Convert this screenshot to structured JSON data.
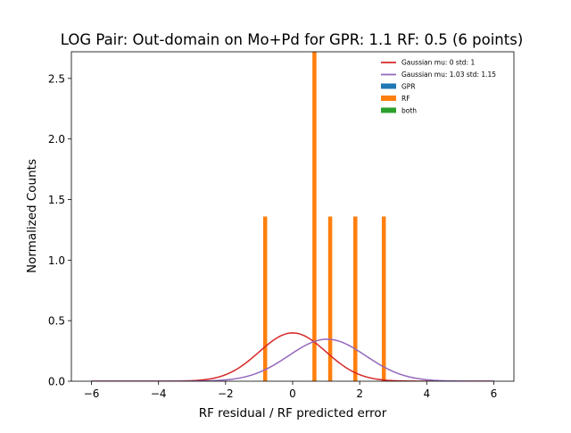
{
  "chart_data": {
    "type": "bar",
    "title": "LOG Pair: Out-domain on Mo+Pd for GPR: 1.1 RF: 0.5 (6 points)",
    "xlabel": "RF residual / RF predicted error",
    "ylabel": "Normalized Counts",
    "xlim": [
      -6.6,
      6.6
    ],
    "ylim": [
      0,
      2.72
    ],
    "xticks": [
      -6,
      -4,
      -2,
      0,
      2,
      4,
      6
    ],
    "xtick_labels": [
      "−6",
      "−4",
      "−2",
      "0",
      "2",
      "4",
      "6"
    ],
    "yticks": [
      0.0,
      0.5,
      1.0,
      1.5,
      2.0,
      2.5
    ],
    "ytick_labels": [
      "0.0",
      "0.5",
      "1.0",
      "1.5",
      "2.0",
      "2.5"
    ],
    "grid": false,
    "legend_position": "upper right",
    "series": [
      {
        "name": "RF",
        "kind": "histogram",
        "color": "#ff7f0e",
        "bin_width": 0.12,
        "x": [
          -0.82,
          0.65,
          1.12,
          1.87,
          2.72
        ],
        "values": [
          1.36,
          2.72,
          1.36,
          1.36,
          1.36
        ]
      },
      {
        "name": "GPR",
        "kind": "histogram",
        "color": "#1f77b4",
        "x": [],
        "values": []
      },
      {
        "name": "both",
        "kind": "histogram",
        "color": "#2ca02c",
        "x": [],
        "values": []
      },
      {
        "name": "Gaussian mu: 0 std: 1",
        "kind": "gaussian",
        "color": "#d62728",
        "mu": 0,
        "std": 1
      },
      {
        "name": "Gaussian mu: 1.03 std: 1.15",
        "kind": "gaussian",
        "color": "#9467bd",
        "mu": 1.03,
        "std": 1.15
      }
    ],
    "legend_order": [
      "Gaussian mu: 0 std: 1",
      "Gaussian mu: 1.03 std: 1.15",
      "GPR",
      "RF",
      "both"
    ],
    "curve_x_range": [
      -6,
      6
    ]
  }
}
